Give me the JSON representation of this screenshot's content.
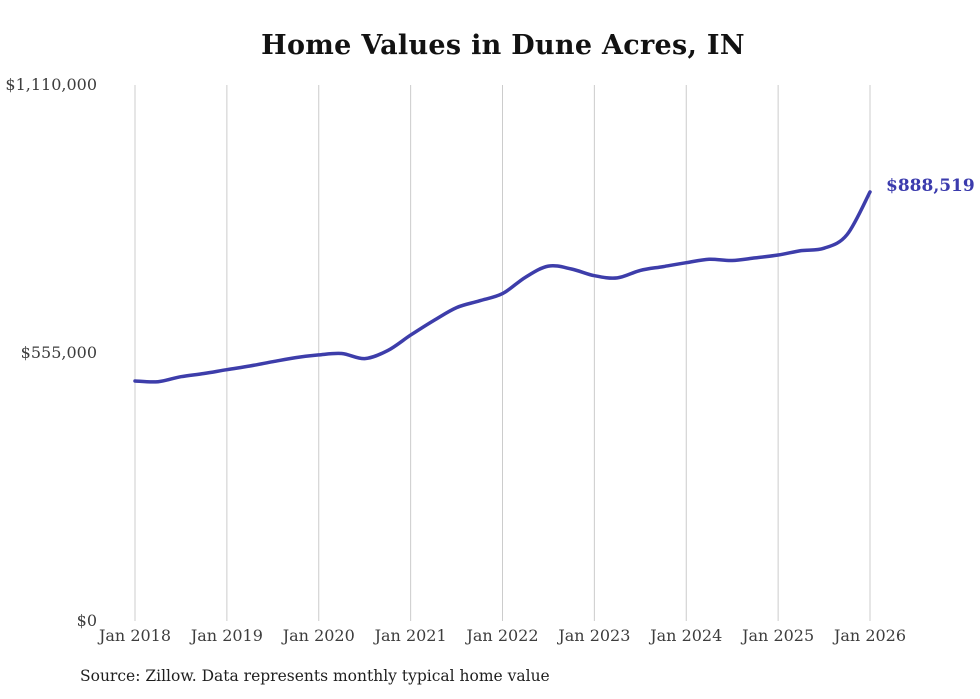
{
  "title": "Home Values in Dune Acres, IN",
  "source_note": "Source: Zillow. Data represents monthly typical home value",
  "latest_value_label": "$888,519",
  "colors": {
    "line": "#3d3daa",
    "grid": "#cccccc",
    "axis_text": "#3d3d3d",
    "title": "#121212",
    "latest_value_text": "#3b3bad",
    "background": "#ffffff"
  },
  "chart_data": {
    "type": "line",
    "title": "Home Values in Dune Acres, IN",
    "xlabel": "",
    "ylabel": "",
    "ylim": [
      0,
      1110000
    ],
    "grid": "vertical-only",
    "legend": "none",
    "x_ticks": [
      {
        "label": "Jan 2018",
        "year": 2018
      },
      {
        "label": "Jan 2019",
        "year": 2019
      },
      {
        "label": "Jan 2020",
        "year": 2020
      },
      {
        "label": "Jan 2021",
        "year": 2021
      },
      {
        "label": "Jan 2022",
        "year": 2022
      },
      {
        "label": "Jan 2023",
        "year": 2023
      },
      {
        "label": "Jan 2024",
        "year": 2024
      },
      {
        "label": "Jan 2025",
        "year": 2025
      },
      {
        "label": "Jan 2026",
        "year": 2026
      }
    ],
    "y_ticks": [
      {
        "label": "$0",
        "value": 0
      },
      {
        "label": "$555,000",
        "value": 555000
      },
      {
        "label": "$1,110,000",
        "value": 1110000
      }
    ],
    "series": [
      {
        "name": "Monthly typical home value",
        "points": [
          {
            "m": "2018-01",
            "v": 497000
          },
          {
            "m": "2018-04",
            "v": 495500
          },
          {
            "m": "2018-07",
            "v": 506000
          },
          {
            "m": "2018-10",
            "v": 512500
          },
          {
            "m": "2019-01",
            "v": 520500
          },
          {
            "m": "2019-04",
            "v": 528000
          },
          {
            "m": "2019-07",
            "v": 537000
          },
          {
            "m": "2019-10",
            "v": 545500
          },
          {
            "m": "2020-01",
            "v": 551000
          },
          {
            "m": "2020-04",
            "v": 554000
          },
          {
            "m": "2020-07",
            "v": 543500
          },
          {
            "m": "2020-10",
            "v": 560000
          },
          {
            "m": "2021-01",
            "v": 592000
          },
          {
            "m": "2021-04",
            "v": 622000
          },
          {
            "m": "2021-07",
            "v": 649000
          },
          {
            "m": "2021-10",
            "v": 663000
          },
          {
            "m": "2022-01",
            "v": 678000
          },
          {
            "m": "2022-04",
            "v": 712000
          },
          {
            "m": "2022-07",
            "v": 735000
          },
          {
            "m": "2022-10",
            "v": 729000
          },
          {
            "m": "2023-01",
            "v": 715000
          },
          {
            "m": "2023-04",
            "v": 710500
          },
          {
            "m": "2023-07",
            "v": 726000
          },
          {
            "m": "2023-10",
            "v": 734000
          },
          {
            "m": "2024-01",
            "v": 742000
          },
          {
            "m": "2024-04",
            "v": 749000
          },
          {
            "m": "2024-07",
            "v": 746500
          },
          {
            "m": "2024-10",
            "v": 752000
          },
          {
            "m": "2025-01",
            "v": 758000
          },
          {
            "m": "2025-04",
            "v": 767000
          },
          {
            "m": "2025-07",
            "v": 772000
          },
          {
            "m": "2025-10",
            "v": 800000
          },
          {
            "m": "2026-01",
            "v": 888519
          }
        ]
      }
    ],
    "latest_point": {
      "m": "2026-01",
      "v": 888519
    }
  }
}
